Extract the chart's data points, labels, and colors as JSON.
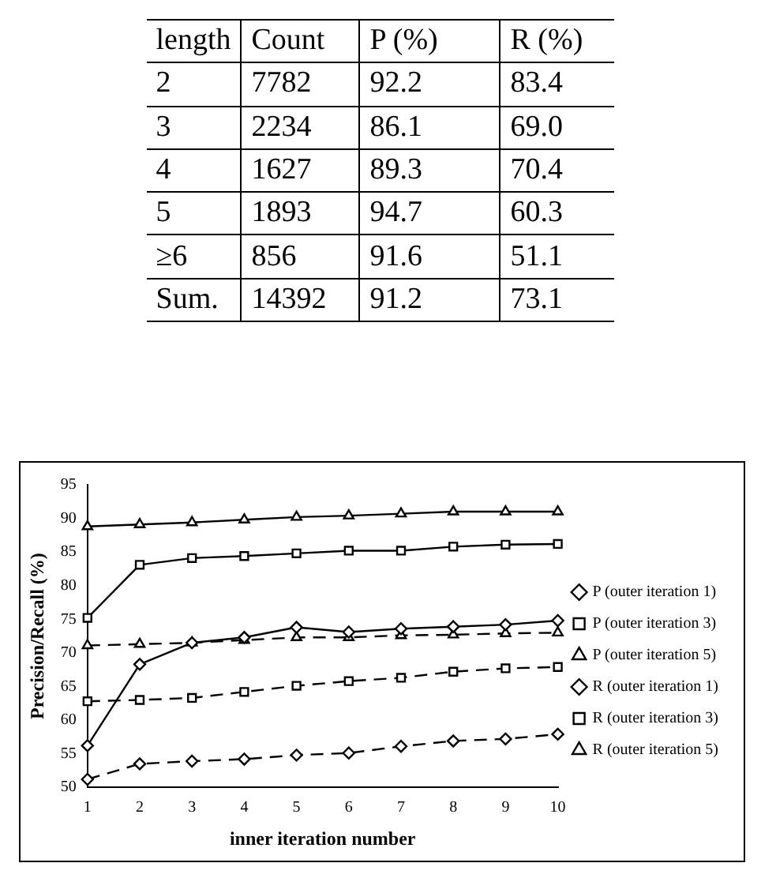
{
  "chart_data": [
    {
      "type": "heatmap",
      "ylabel": "length",
      "categories": [
        "Count",
        "P (%)",
        "R (%)"
      ],
      "y_categories": [
        "2",
        "3",
        "4",
        "5",
        "≥6",
        "Sum."
      ],
      "cells": [
        [
          7782,
          92.2,
          83.4
        ],
        [
          2234,
          86.1,
          69.0
        ],
        [
          1627,
          89.3,
          70.4
        ],
        [
          1893,
          94.7,
          60.3
        ],
        [
          856,
          91.6,
          51.1
        ],
        [
          14392,
          91.2,
          73.1
        ]
      ],
      "cell_labels": [
        [
          "7782",
          "92.2",
          "83.4"
        ],
        [
          "2234",
          "86.1",
          "69.0"
        ],
        [
          "1627",
          "89.3",
          "70.4"
        ],
        [
          "1893",
          "94.7",
          "60.3"
        ],
        [
          "856",
          "91.6",
          "51.1"
        ],
        [
          "14392",
          "91.2",
          "73.1"
        ]
      ]
    },
    {
      "type": "line",
      "xlabel": "inner iteration number",
      "ylabel": "Precision/Recall (%)",
      "categories": [
        "1",
        "2",
        "3",
        "4",
        "5",
        "6",
        "7",
        "8",
        "9",
        "10"
      ],
      "ylim": [
        50,
        95
      ],
      "yticks": [
        50,
        55,
        60,
        65,
        70,
        75,
        80,
        85,
        90,
        95
      ],
      "grid": false,
      "legend": "right",
      "series": [
        {
          "name": "P (outer iteration 1)",
          "color": "#000000",
          "marker": "diamond",
          "line_style": "solid",
          "values": [
            56.2,
            68.3,
            71.5,
            72.3,
            73.8,
            73.1,
            73.6,
            73.9,
            74.2,
            74.8
          ]
        },
        {
          "name": "P (outer iteration 3)",
          "color": "#000000",
          "marker": "square",
          "line_style": "solid",
          "values": [
            75.2,
            83.1,
            84.1,
            84.4,
            84.8,
            85.2,
            85.2,
            85.8,
            86.1,
            86.2
          ]
        },
        {
          "name": "P (outer iteration 5)",
          "color": "#000000",
          "marker": "triangle",
          "line_style": "solid",
          "values": [
            88.8,
            89.1,
            89.4,
            89.8,
            90.2,
            90.4,
            90.7,
            91.0,
            91.0,
            91.0
          ]
        },
        {
          "name": "R (outer iteration 1)",
          "color": "#000000",
          "marker": "diamond",
          "line_style": "dashed",
          "values": [
            51.2,
            53.5,
            53.9,
            54.2,
            54.8,
            55.1,
            56.1,
            56.9,
            57.2,
            57.9
          ]
        },
        {
          "name": "R (outer iteration 3)",
          "color": "#000000",
          "marker": "square",
          "line_style": "dashed",
          "values": [
            62.8,
            63.0,
            63.3,
            64.2,
            65.1,
            65.8,
            66.3,
            67.2,
            67.7,
            67.9
          ]
        },
        {
          "name": "R (outer iteration 5)",
          "color": "#000000",
          "marker": "triangle",
          "line_style": "dashed",
          "values": [
            71.1,
            71.3,
            71.5,
            71.9,
            72.3,
            72.3,
            72.6,
            72.7,
            72.9,
            73.0
          ]
        }
      ]
    }
  ]
}
